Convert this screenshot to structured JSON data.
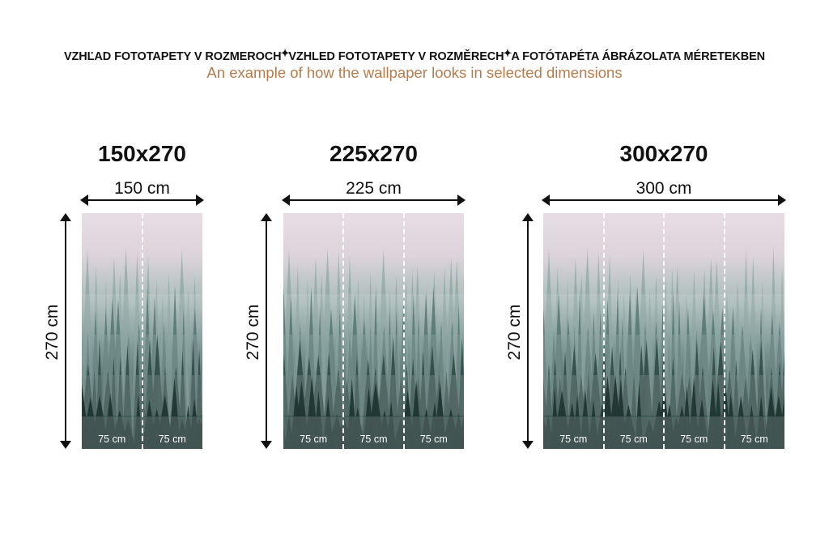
{
  "header": {
    "title_parts": [
      "VZHĽAD FOTOTAPETY V ROZMEROCH",
      "VZHLED FOTOTAPETY V ROZMĚRECH",
      "A FOTÓTAPÉTA ÁBRÁZOLATA MÉRETEKBEN"
    ],
    "separator_icon": "sparkle-icon",
    "subtitle": "An example of how the wallpaper looks in selected dimensions",
    "subtitle_color": "#b87c4c"
  },
  "panels": [
    {
      "title": "150x270",
      "width_label": "150 cm",
      "height_label": "270 cm",
      "segments": [
        "75 cm",
        "75 cm"
      ]
    },
    {
      "title": "225x270",
      "width_label": "225 cm",
      "height_label": "270 cm",
      "segments": [
        "75 cm",
        "75 cm",
        "75 cm"
      ]
    },
    {
      "title": "300x270",
      "width_label": "300 cm",
      "height_label": "270 cm",
      "segments": [
        "75 cm",
        "75 cm",
        "75 cm",
        "75 cm"
      ]
    }
  ]
}
